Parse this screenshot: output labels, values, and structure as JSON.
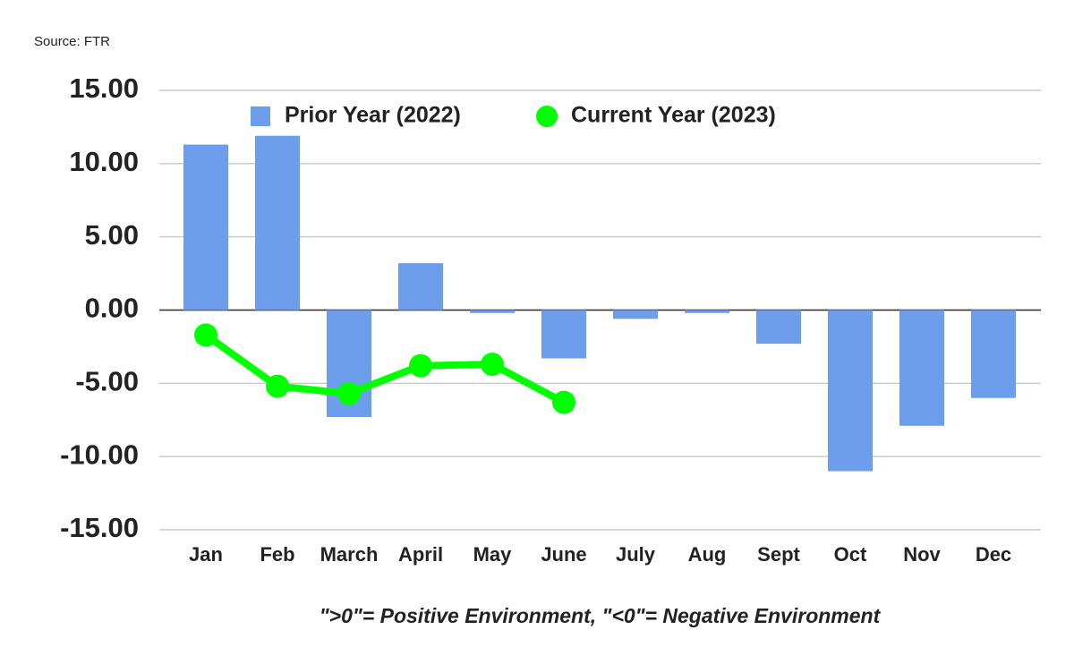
{
  "chart_data": {
    "type": "bar_line",
    "source": "Source: FTR",
    "note": "\">0\"= Positive Environment, \"<0\"= Negative Environment",
    "categories": [
      "Jan",
      "Feb",
      "March",
      "April",
      "May",
      "June",
      "July",
      "Aug",
      "Sept",
      "Oct",
      "Nov",
      "Dec"
    ],
    "series": [
      {
        "name": "Prior Year (2022)",
        "type": "bar",
        "color": "#6d9eeb",
        "values": [
          11.3,
          11.9,
          -7.3,
          3.2,
          -0.2,
          -3.3,
          -0.6,
          -0.2,
          -2.3,
          -11.0,
          -7.9,
          -6.0
        ]
      },
      {
        "name": "Current Year (2023)",
        "type": "line",
        "color": "#00ff00",
        "values": [
          -1.7,
          -5.2,
          -5.7,
          -3.8,
          -3.7,
          -6.3,
          null,
          null,
          null,
          null,
          null,
          null
        ]
      }
    ],
    "ylim": [
      -15,
      15
    ],
    "yticks": [
      {
        "value": -15,
        "label": "-15.00"
      },
      {
        "value": -10,
        "label": "-10.00"
      },
      {
        "value": -5,
        "label": "-5.00"
      },
      {
        "value": 0,
        "label": "0.00"
      },
      {
        "value": 5,
        "label": "5.00"
      },
      {
        "value": 10,
        "label": "10.00"
      },
      {
        "value": 15,
        "label": "15.00"
      }
    ],
    "grid": true,
    "legend": "top"
  }
}
